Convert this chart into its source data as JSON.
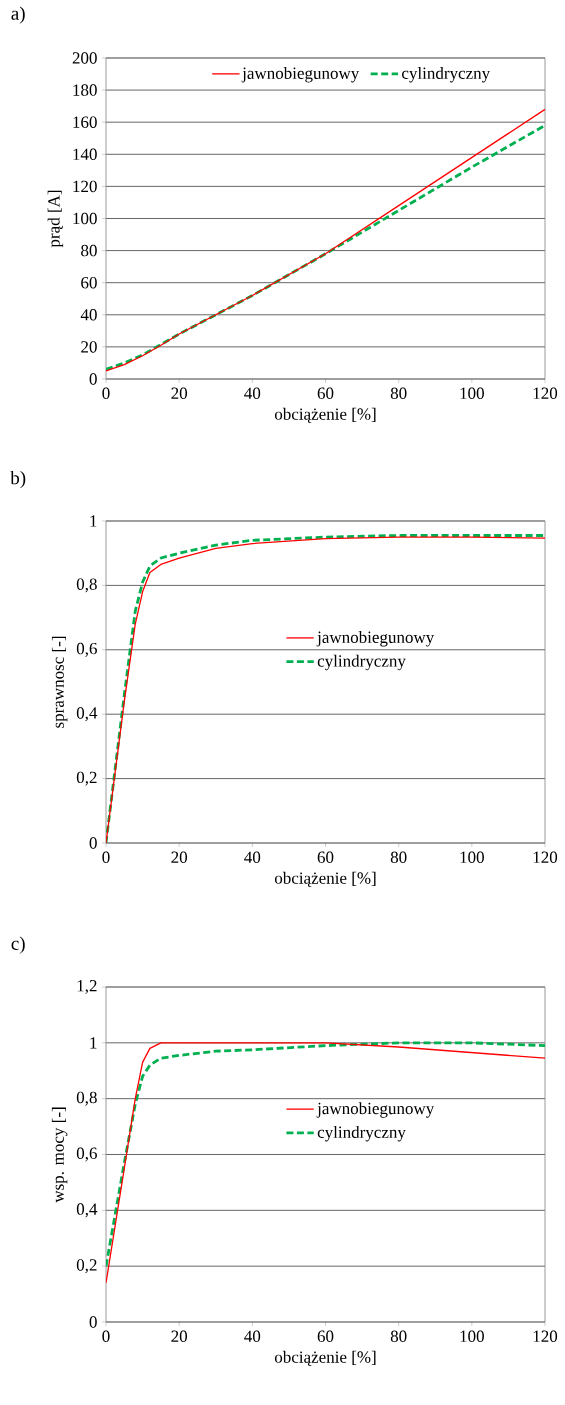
{
  "chart_data": [
    {
      "type": "line",
      "title": "a)",
      "xlabel": "obciążenie [%]",
      "ylabel": "prąd [A]",
      "xlim": [
        0,
        120
      ],
      "ylim": [
        0,
        200
      ],
      "xticks": [
        0,
        20,
        40,
        60,
        80,
        100,
        120
      ],
      "yticks": [
        0,
        20,
        40,
        60,
        80,
        100,
        120,
        140,
        160,
        180,
        200
      ],
      "grid": "y",
      "legend": "top",
      "series": [
        {
          "name": "jawnobiegunowy",
          "color": "#ff0000",
          "line_style": "solid",
          "x": [
            0,
            5,
            10,
            15,
            20,
            30,
            40,
            60,
            80,
            100,
            120
          ],
          "values": [
            5,
            9,
            14.5,
            21,
            28,
            40,
            52,
            78,
            108,
            138,
            168
          ]
        },
        {
          "name": "cylindryczny",
          "color": "#00b050",
          "line_style": "dashed",
          "x": [
            0,
            5,
            10,
            15,
            20,
            30,
            40,
            60,
            80,
            100,
            120
          ],
          "values": [
            6,
            10,
            15,
            21.5,
            28,
            40,
            52,
            78,
            105,
            132,
            158
          ]
        }
      ]
    },
    {
      "type": "line",
      "title": "b)",
      "xlabel": "obciążenie [%]",
      "ylabel": "sprawnosc [-]",
      "xlim": [
        0,
        120
      ],
      "ylim": [
        0,
        1
      ],
      "xticks": [
        0,
        20,
        40,
        60,
        80,
        100,
        120
      ],
      "yticks": [
        0,
        {
          "value": 0.2,
          "label": "0,2"
        },
        {
          "value": 0.4,
          "label": "0,4"
        },
        {
          "value": 0.6,
          "label": "0,6"
        },
        {
          "value": 0.8,
          "label": "0,8"
        },
        1
      ],
      "grid": "y",
      "legend": "right",
      "series": [
        {
          "name": "jawnobiegunowy",
          "color": "#ff0000",
          "line_style": "solid",
          "x": [
            0,
            5,
            8,
            10,
            12,
            15,
            20,
            30,
            40,
            60,
            80,
            100,
            120
          ],
          "values": [
            0,
            0.44,
            0.68,
            0.78,
            0.84,
            0.865,
            0.885,
            0.915,
            0.93,
            0.945,
            0.95,
            0.95,
            0.947
          ]
        },
        {
          "name": "cylindryczny",
          "color": "#00b050",
          "line_style": "dashed",
          "x": [
            0,
            5,
            8,
            10,
            12,
            15,
            20,
            30,
            40,
            60,
            80,
            100,
            120
          ],
          "values": [
            0,
            0.46,
            0.72,
            0.81,
            0.86,
            0.885,
            0.9,
            0.925,
            0.94,
            0.95,
            0.955,
            0.955,
            0.955
          ]
        }
      ]
    },
    {
      "type": "line",
      "title": "c)",
      "xlabel": "obciążenie [%]",
      "ylabel": "wsp. mocy [-]",
      "xlim": [
        0,
        120
      ],
      "ylim": [
        0,
        1.2
      ],
      "xticks": [
        0,
        20,
        40,
        60,
        80,
        100,
        120
      ],
      "yticks": [
        0,
        {
          "value": 0.2,
          "label": "0,2"
        },
        {
          "value": 0.4,
          "label": "0,4"
        },
        {
          "value": 0.6,
          "label": "0,6"
        },
        {
          "value": 0.8,
          "label": "0,8"
        },
        1,
        {
          "value": 1.2,
          "label": "1,2"
        }
      ],
      "grid": "y",
      "legend": "right",
      "series": [
        {
          "name": "jawnobiegunowy",
          "color": "#ff0000",
          "line_style": "solid",
          "x": [
            0,
            5,
            8,
            10,
            12,
            15,
            20,
            40,
            60,
            80,
            100,
            120
          ],
          "values": [
            0.14,
            0.55,
            0.8,
            0.93,
            0.98,
            1.0,
            1.0,
            1.0,
            1.0,
            0.985,
            0.965,
            0.945
          ]
        },
        {
          "name": "cylindryczny",
          "color": "#00b050",
          "line_style": "dashed",
          "x": [
            0,
            5,
            8,
            10,
            12,
            15,
            20,
            30,
            40,
            60,
            80,
            100,
            120
          ],
          "values": [
            0.2,
            0.57,
            0.78,
            0.88,
            0.92,
            0.945,
            0.955,
            0.97,
            0.975,
            0.99,
            1.0,
            1.0,
            0.99
          ]
        }
      ]
    }
  ]
}
